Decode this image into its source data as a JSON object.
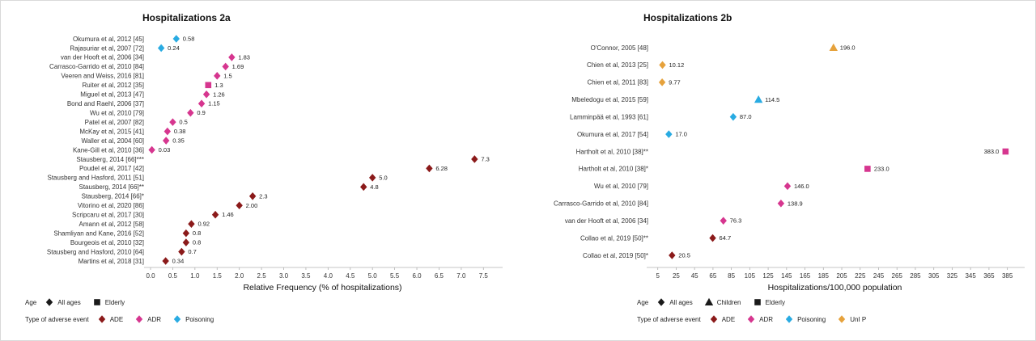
{
  "figure": {
    "colors": {
      "ADE": "#8B1A1A",
      "ADR": "#D6368F",
      "Poisoning": "#29ABE2",
      "UnI P": "#E6A23C",
      "legend_shape": "#1A1A1A"
    }
  },
  "chart_data": [
    {
      "type": "scatter",
      "title": "Hospitalizations 2a",
      "xlabel": "Relative Frequency (% of hospitalizations)",
      "xlim": [
        0,
        7.75
      ],
      "xticks": [
        "0.0",
        "0.5",
        "1.0",
        "1.5",
        "2.0",
        "2.5",
        "3.0",
        "3.5",
        "4.0",
        "4.5",
        "5.0",
        "5.5",
        "6.0",
        "6.5",
        "7.0",
        "7.5"
      ],
      "grid": false,
      "legend": {
        "age_title": "Age",
        "age_items": [
          {
            "label": "All ages",
            "shape": "diamond"
          },
          {
            "label": "Elderly",
            "shape": "square"
          }
        ],
        "event_title": "Type of adverse event",
        "event_items": [
          {
            "label": "ADE"
          },
          {
            "label": "ADR"
          },
          {
            "label": "Poisoning"
          }
        ]
      },
      "points": [
        {
          "study": "Okumura et al, 2012 [45]",
          "value": 0.58,
          "label": "0.58",
          "event": "Poisoning",
          "shape": "diamond"
        },
        {
          "study": "Rajasuriar et al, 2007 [72]",
          "value": 0.24,
          "label": "0.24",
          "event": "Poisoning",
          "shape": "diamond"
        },
        {
          "study": "van der Hooft et al, 2006 [34]",
          "value": 1.83,
          "label": "1.83",
          "event": "ADR",
          "shape": "diamond"
        },
        {
          "study": "Carrasco-Garrido et al, 2010 [84]",
          "value": 1.69,
          "label": "1.69",
          "event": "ADR",
          "shape": "diamond"
        },
        {
          "study": "Veeren and Weiss, 2016 [81]",
          "value": 1.5,
          "label": "1.5",
          "event": "ADR",
          "shape": "diamond"
        },
        {
          "study": "Ruiter et al, 2012 [35]",
          "value": 1.3,
          "label": "1.3",
          "event": "ADR",
          "shape": "square"
        },
        {
          "study": "Miguel et al, 2013 [47]",
          "value": 1.26,
          "label": "1.26",
          "event": "ADR",
          "shape": "diamond"
        },
        {
          "study": "Bond and Raehl, 2006 [37]",
          "value": 1.15,
          "label": "1.15",
          "event": "ADR",
          "shape": "diamond"
        },
        {
          "study": "Wu et al, 2010 [79]",
          "value": 0.9,
          "label": "0.9",
          "event": "ADR",
          "shape": "diamond"
        },
        {
          "study": "Patel et al, 2007 [82]",
          "value": 0.5,
          "label": "0.5",
          "event": "ADR",
          "shape": "diamond"
        },
        {
          "study": "McKay et al, 2015 [41]",
          "value": 0.38,
          "label": "0.38",
          "event": "ADR",
          "shape": "diamond"
        },
        {
          "study": "Waller et al, 2004 [60]",
          "value": 0.35,
          "label": "0.35",
          "event": "ADR",
          "shape": "diamond"
        },
        {
          "study": "Kane-Gill et al, 2010 [36]",
          "value": 0.03,
          "label": "0.03",
          "event": "ADR",
          "shape": "diamond"
        },
        {
          "study": "Stausberg, 2014 [66]***",
          "value": 7.3,
          "label": "7.3",
          "event": "ADE",
          "shape": "diamond"
        },
        {
          "study": "Poudel et al, 2017 [42]",
          "value": 6.28,
          "label": "6.28",
          "event": "ADE",
          "shape": "diamond"
        },
        {
          "study": "Stausberg and Hasford, 2011 [51]",
          "value": 5.0,
          "label": "5.0",
          "event": "ADE",
          "shape": "diamond"
        },
        {
          "study": "Stausberg, 2014 [66]**",
          "value": 4.8,
          "label": "4.8",
          "event": "ADE",
          "shape": "diamond"
        },
        {
          "study": "Stausberg, 2014 [66]*",
          "value": 2.3,
          "label": "2.3",
          "event": "ADE",
          "shape": "diamond"
        },
        {
          "study": "Vitorino et al, 2020 [86]",
          "value": 2.0,
          "label": "2.00",
          "event": "ADE",
          "shape": "diamond"
        },
        {
          "study": "Scripcaru et al, 2017 [30]",
          "value": 1.46,
          "label": "1.46",
          "event": "ADE",
          "shape": "diamond"
        },
        {
          "study": "Amann et al, 2012 [58]",
          "value": 0.92,
          "label": "0.92",
          "event": "ADE",
          "shape": "diamond"
        },
        {
          "study": "Shamliyan and Kane, 2016 [52]",
          "value": 0.8,
          "label": "0.8",
          "event": "ADE",
          "shape": "diamond"
        },
        {
          "study": "Bourgeois et al, 2010 [32]",
          "value": 0.8,
          "label": "0.8",
          "event": "ADE",
          "shape": "diamond"
        },
        {
          "study": "Stausberg and Hasford, 2010 [64]",
          "value": 0.7,
          "label": "0.7",
          "event": "ADE",
          "shape": "diamond"
        },
        {
          "study": "Martins et al, 2018 [31]",
          "value": 0.34,
          "label": "0.34",
          "event": "ADE",
          "shape": "diamond"
        }
      ]
    },
    {
      "type": "scatter",
      "title": "Hospitalizations 2b",
      "xlabel": "Hospitalizations/100,000 population",
      "xlim": [
        0,
        395
      ],
      "xticks": [
        "5",
        "25",
        "45",
        "65",
        "85",
        "105",
        "125",
        "145",
        "165",
        "185",
        "205",
        "225",
        "245",
        "265",
        "285",
        "305",
        "325",
        "345",
        "365",
        "385"
      ],
      "grid": false,
      "legend": {
        "age_title": "Age",
        "age_items": [
          {
            "label": "All ages",
            "shape": "diamond"
          },
          {
            "label": "Children",
            "shape": "triangle"
          },
          {
            "label": "Elderly",
            "shape": "square"
          }
        ],
        "event_title": "Type of adverse event",
        "event_items": [
          {
            "label": "ADE"
          },
          {
            "label": "ADR"
          },
          {
            "label": "Poisoning"
          },
          {
            "label": "UnI P"
          }
        ]
      },
      "points": [
        {
          "study": "O'Connor, 2005 [48]",
          "value": 196.0,
          "label": "196.0",
          "event": "UnI P",
          "shape": "triangle"
        },
        {
          "study": "Chien et al, 2013 [25]",
          "value": 10.12,
          "label": "10.12",
          "event": "UnI P",
          "shape": "diamond"
        },
        {
          "study": "Chien et al, 2011 [83]",
          "value": 9.77,
          "label": "9.77",
          "event": "UnI P",
          "shape": "diamond"
        },
        {
          "study": "Mbeledogu et al, 2015 [59]",
          "value": 114.5,
          "label": "114.5",
          "event": "Poisoning",
          "shape": "triangle"
        },
        {
          "study": "Lamminpää et al, 1993 [61]",
          "value": 87.0,
          "label": "87.0",
          "event": "Poisoning",
          "shape": "diamond"
        },
        {
          "study": "Okumura et al, 2017 [54]",
          "value": 17.0,
          "label": "17.0",
          "event": "Poisoning",
          "shape": "diamond"
        },
        {
          "study": "Hartholt et al, 2010 [38]**",
          "value": 383.0,
          "label": "383.0",
          "event": "ADR",
          "shape": "square",
          "label_side": "left"
        },
        {
          "study": "Hartholt et al, 2010 [38]*",
          "value": 233.0,
          "label": "233.0",
          "event": "ADR",
          "shape": "square"
        },
        {
          "study": "Wu et al, 2010 [79]",
          "value": 146.0,
          "label": "146.0",
          "event": "ADR",
          "shape": "diamond"
        },
        {
          "study": "Carrasco-Garrido et al, 2010 [84]",
          "value": 138.9,
          "label": "138.9",
          "event": "ADR",
          "shape": "diamond"
        },
        {
          "study": "van der Hooft et al, 2006 [34]",
          "value": 76.3,
          "label": "76.3",
          "event": "ADR",
          "shape": "diamond"
        },
        {
          "study": "Collao et al, 2019 [50]**",
          "value": 64.7,
          "label": "64.7",
          "event": "ADE",
          "shape": "diamond"
        },
        {
          "study": "Collao et al, 2019 [50]*",
          "value": 20.5,
          "label": "20.5",
          "event": "ADE",
          "shape": "diamond"
        }
      ]
    }
  ]
}
